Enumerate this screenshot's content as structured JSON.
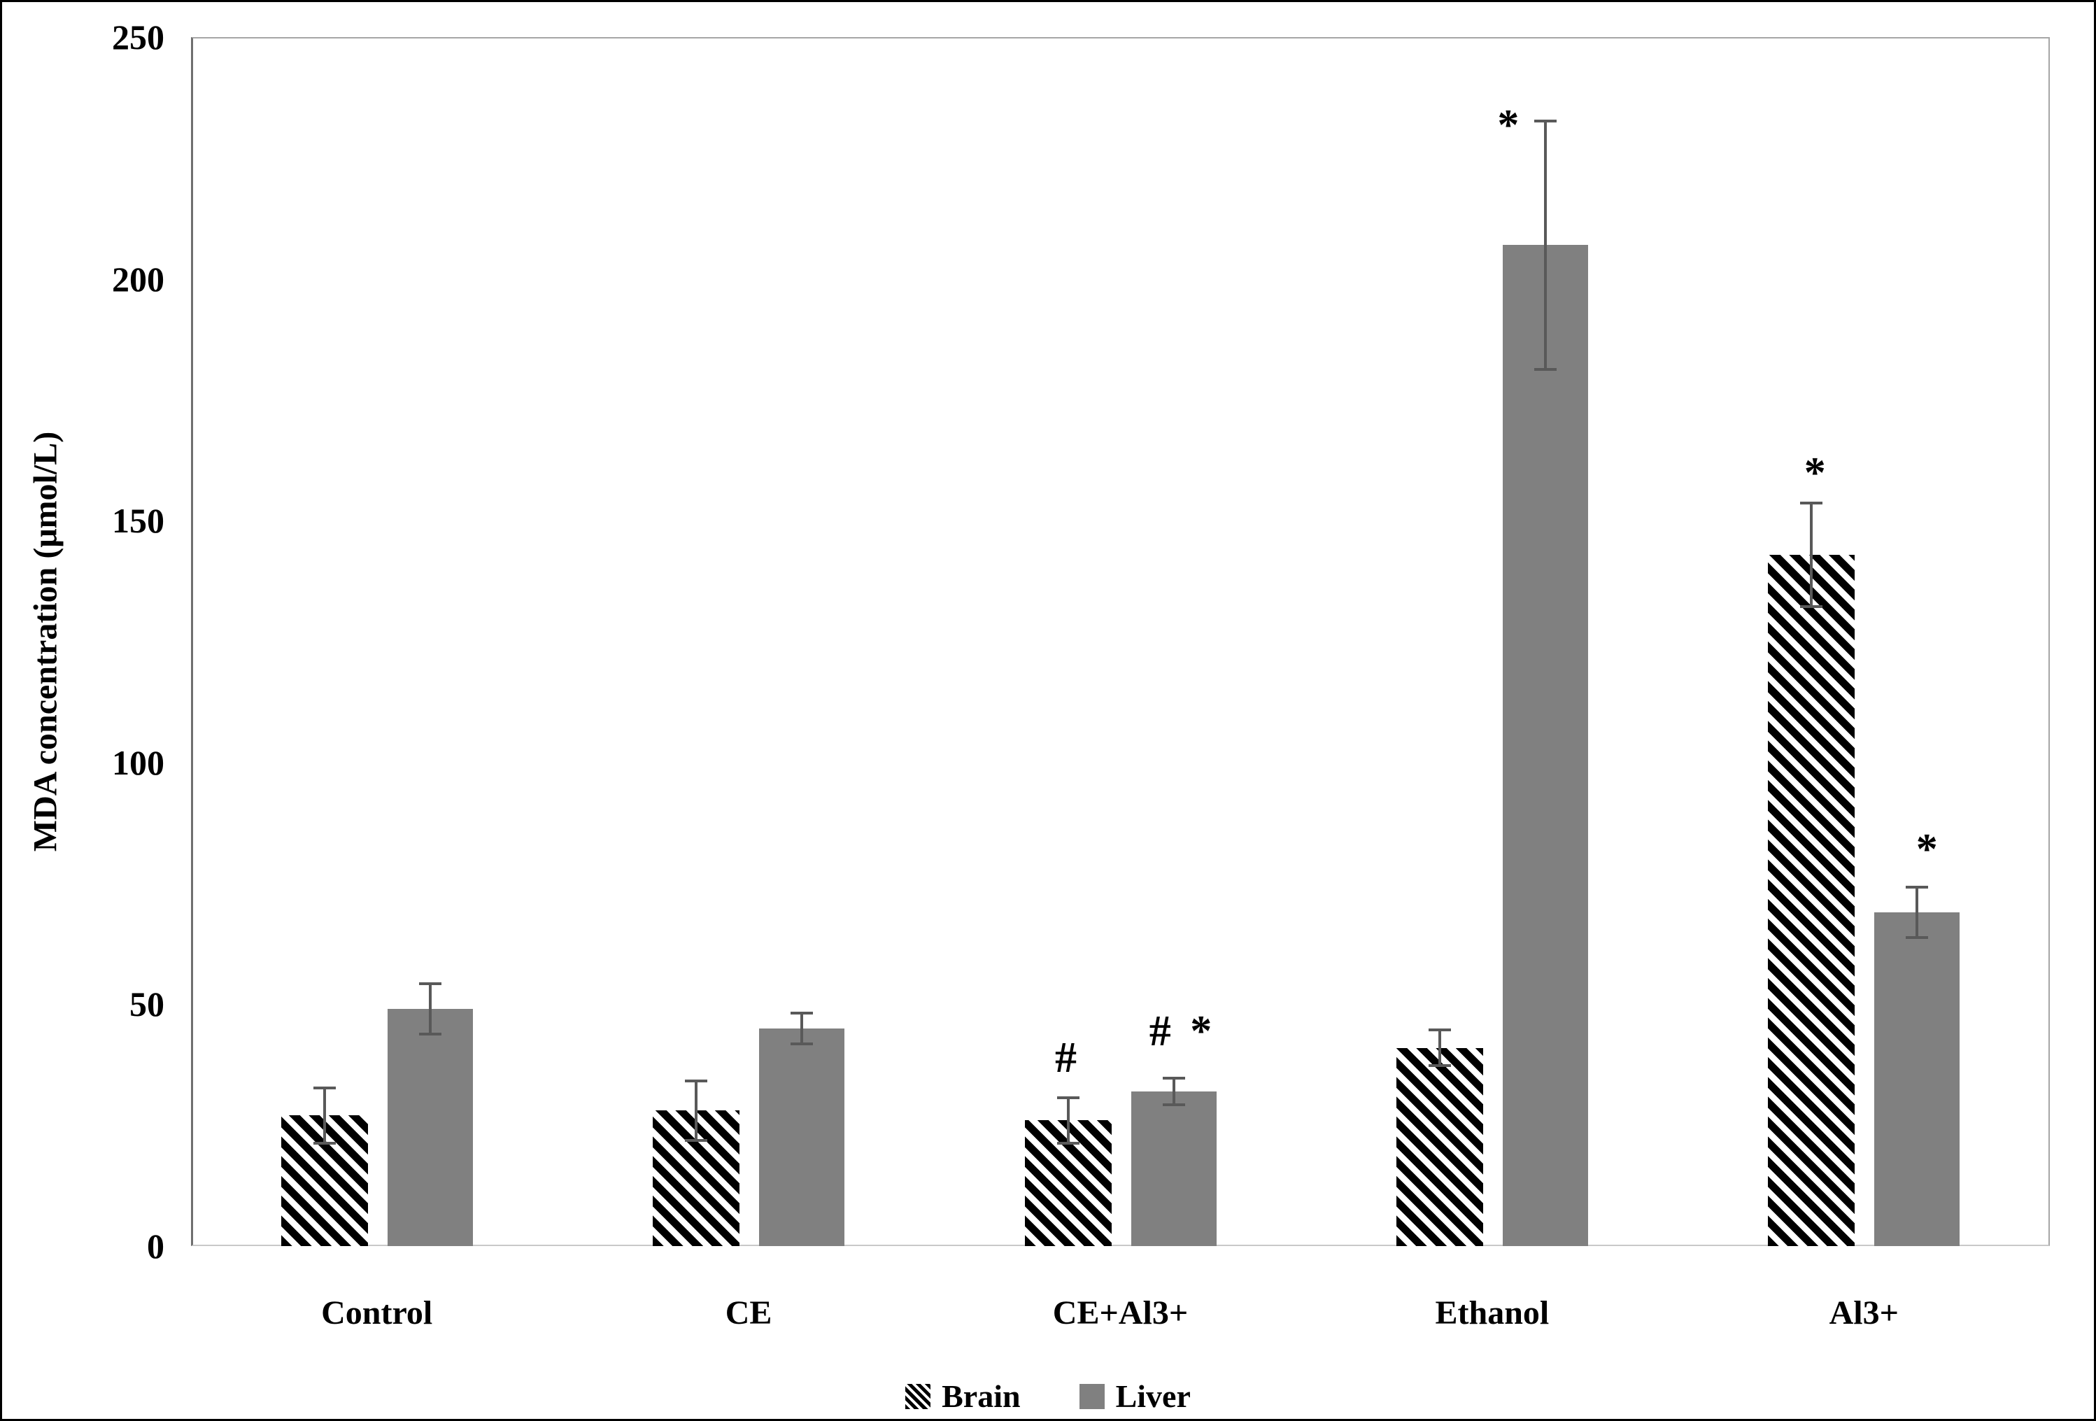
{
  "figure": {
    "background_color": "#ffffff",
    "border_color": "#000000"
  },
  "colors": {
    "liver_bar": "#808080",
    "brain_hatch": "#000000",
    "error_bar": "#595959",
    "plot_frame": "#a6a6a6",
    "y_axis_line": "#6f6f6f",
    "baseline": "#c9c9c9",
    "text": "#000000"
  },
  "chart_data": {
    "type": "bar",
    "title": "",
    "xlabel": "",
    "ylabel": "MDA concentration (μmol/L)",
    "ylim": [
      0,
      250
    ],
    "yticks": [
      0,
      50,
      100,
      150,
      200,
      250
    ],
    "grid": false,
    "legend_position": "bottom-center",
    "categories": [
      "Control",
      "CE",
      "CE+Al3+",
      "Ethanol",
      "Al3+"
    ],
    "series": [
      {
        "name": "Brain",
        "style": "black-diagonal-hatch",
        "values": [
          27,
          28,
          26,
          41,
          143
        ],
        "errors": [
          6,
          6.5,
          5,
          4,
          11
        ],
        "annotations": [
          "",
          "",
          "#",
          "",
          "*"
        ],
        "annotation_offsets": [
          null,
          null,
          [
            0,
            -54
          ],
          null,
          [
            8,
            -40
          ]
        ]
      },
      {
        "name": "Liver",
        "style": "solid-gray",
        "color": "#808080",
        "values": [
          49,
          45,
          32,
          207,
          69
        ],
        "errors": [
          5.5,
          3.5,
          3,
          26,
          5.5
        ],
        "annotations": [
          "",
          "",
          "# *",
          "*",
          "*"
        ],
        "annotation_offsets": [
          null,
          null,
          [
            13,
            -64
          ],
          [
            -50,
            9
          ],
          [
            17,
            -51
          ]
        ]
      }
    ]
  },
  "legend": {
    "items": [
      {
        "label": "Brain",
        "swatch": "hatch"
      },
      {
        "label": "Liver",
        "swatch": "solid"
      }
    ]
  }
}
